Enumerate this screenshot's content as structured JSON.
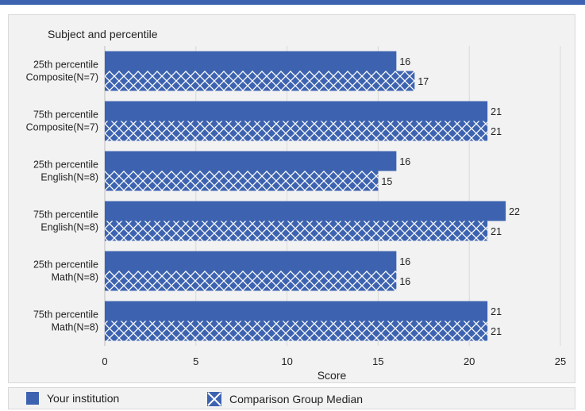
{
  "colors": {
    "series_primary": "#3d63b0",
    "hatch_line": "#ffffff",
    "grid": "#d9d9d9",
    "panel_bg": "#f2f2f2"
  },
  "legend": {
    "your_institution": "Your institution",
    "comparison_group": "Comparison Group Median"
  },
  "chart_data": {
    "type": "bar",
    "orientation": "horizontal",
    "title": "",
    "ylabel": "Subject and percentile",
    "xlabel": "Score",
    "xlim": [
      0,
      25
    ],
    "xticks": [
      0,
      5,
      10,
      15,
      20,
      25
    ],
    "grid": "vertical",
    "legend_placement": "bottom",
    "categories": [
      [
        "25th percentile",
        "Composite(N=7)"
      ],
      [
        "75th percentile",
        "Composite(N=7)"
      ],
      [
        "25th percentile",
        "English(N=8)"
      ],
      [
        "75th percentile",
        "English(N=8)"
      ],
      [
        "25th percentile",
        "Math(N=8)"
      ],
      [
        "75th percentile",
        "Math(N=8)"
      ]
    ],
    "series": [
      {
        "name": "Your institution",
        "values": [
          16,
          21,
          16,
          22,
          16,
          21
        ],
        "fill": "solid"
      },
      {
        "name": "Comparison Group Median",
        "values": [
          17,
          21,
          15,
          21,
          16,
          21
        ],
        "fill": "crosshatch"
      }
    ]
  }
}
